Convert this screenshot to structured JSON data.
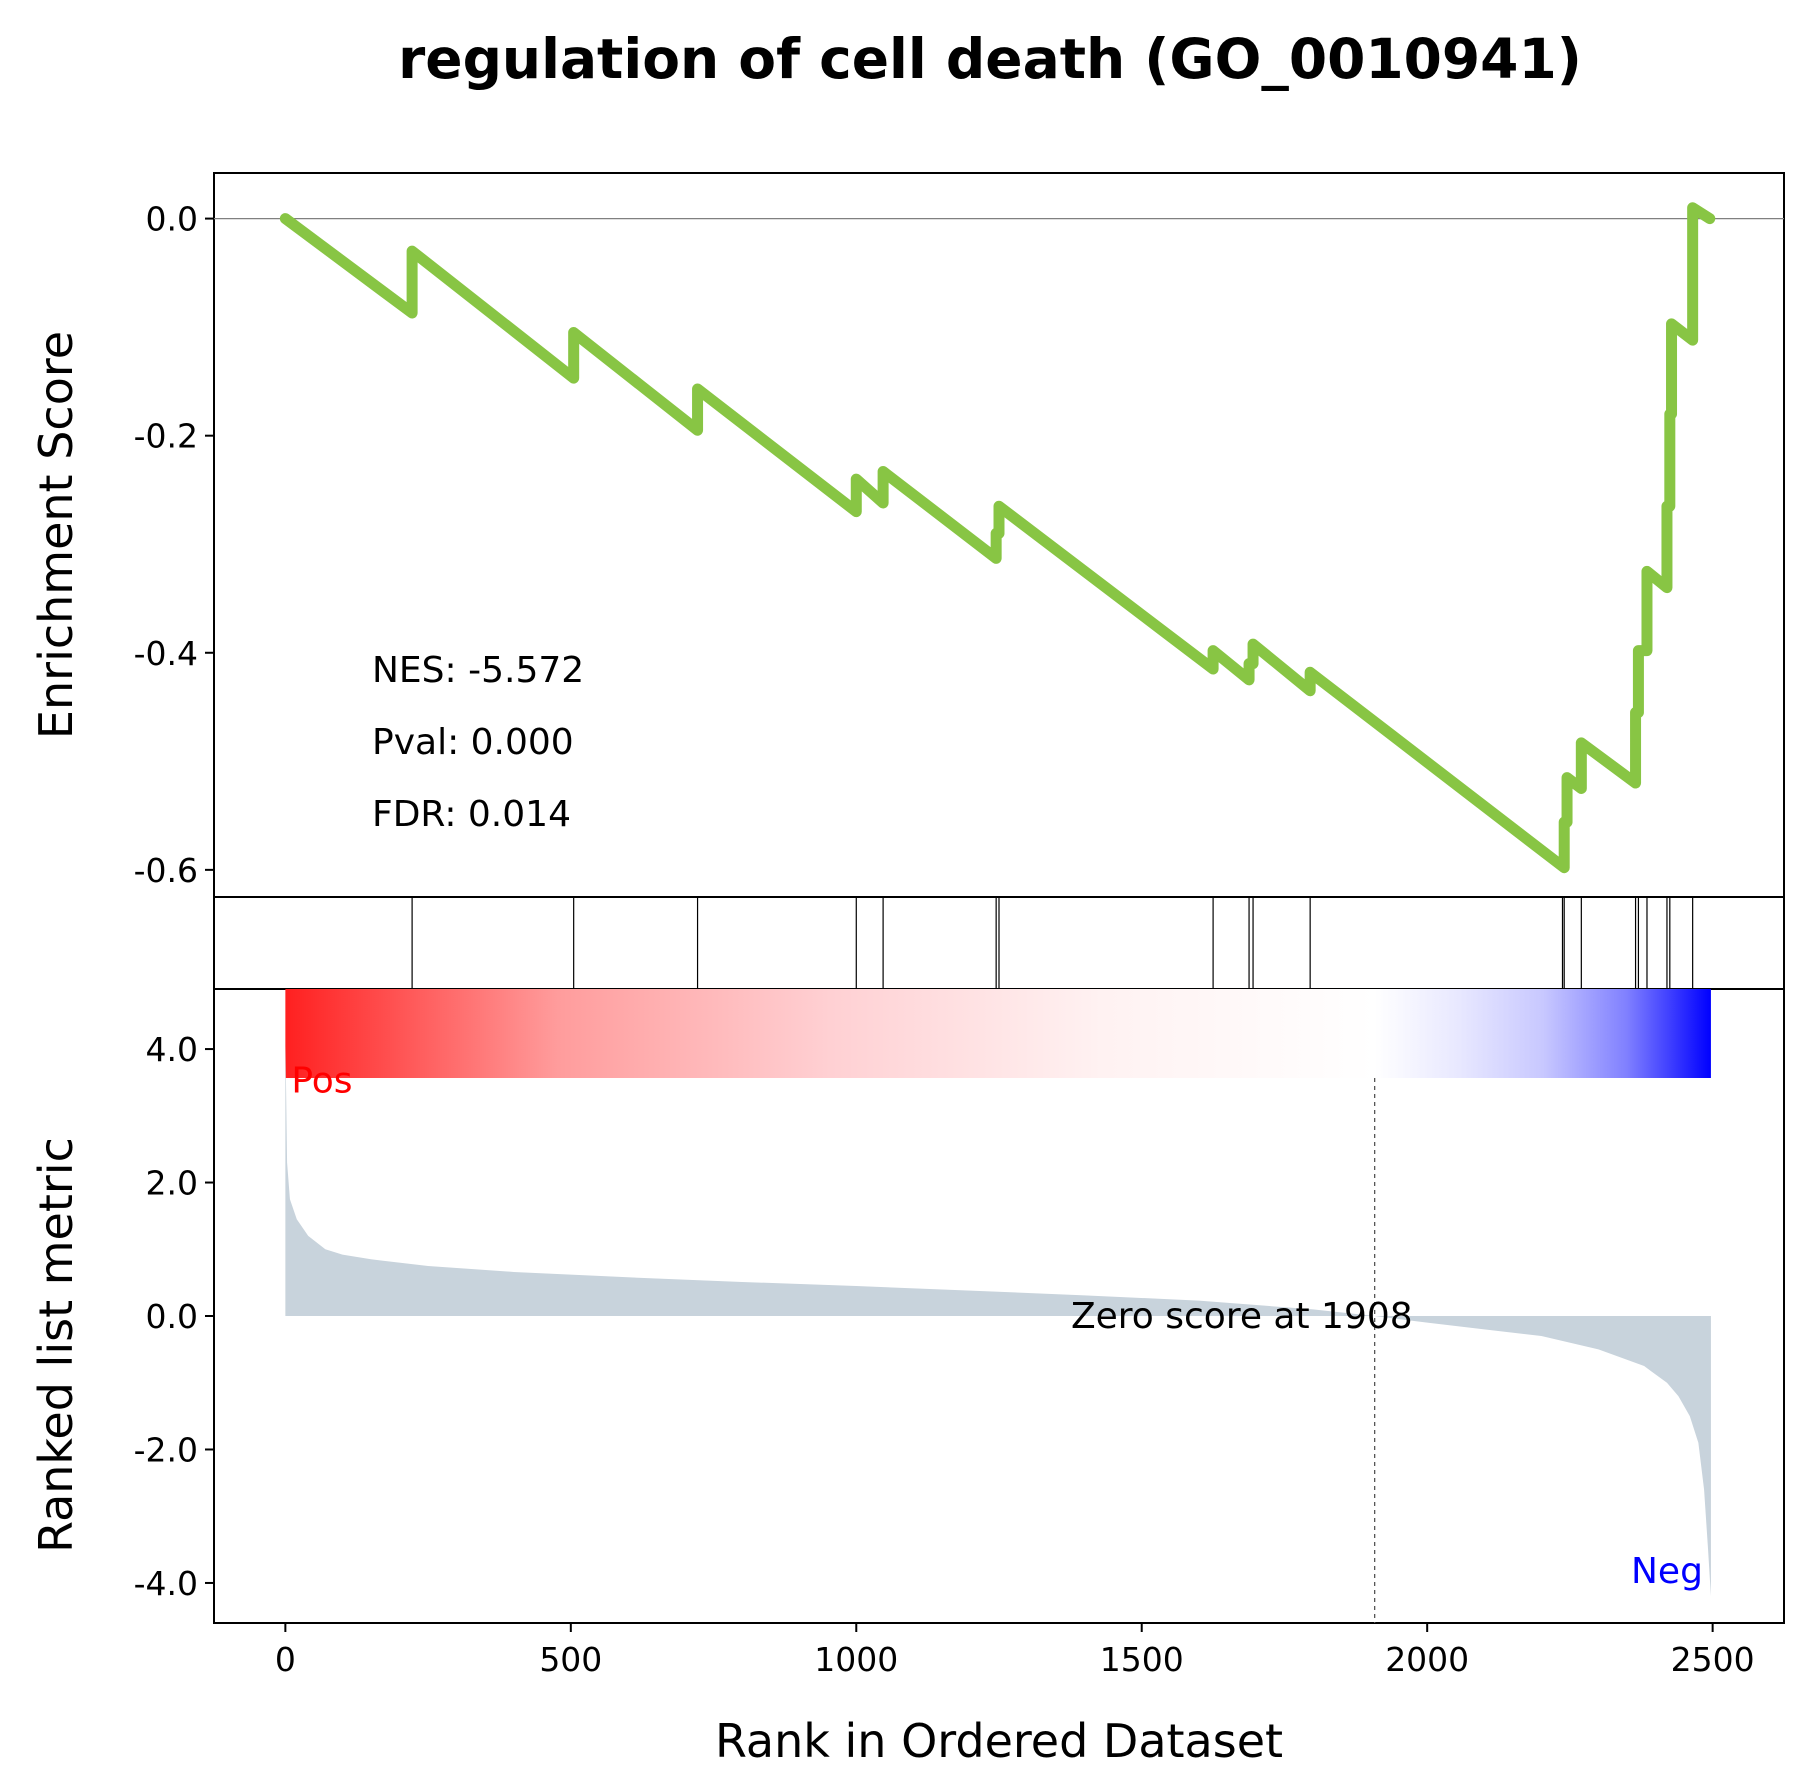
{
  "chart_data": {
    "type": "line",
    "title": "regulation of cell death (GO_0010941)",
    "xlabel": "Rank in Ordered Dataset",
    "xlim": [
      -125,
      2625
    ],
    "x_ticks": [
      0,
      500,
      1000,
      1500,
      2000,
      2500
    ],
    "x_tick_labels": [
      "0",
      "500",
      "1000",
      "1500",
      "2000",
      "2500"
    ],
    "colors": {
      "es_line": "#88c544",
      "metric_fill": "#c8d3dc",
      "pos_label": "#ff0000",
      "neg_label": "#0000ff",
      "gradient_stops": [
        "#ff2020",
        "#ff9c9c",
        "#ffd0d3",
        "#fff2f2",
        "#ffffff",
        "#e8e8ff",
        "#c8c8ff",
        "#8080ff",
        "#0000ff"
      ]
    },
    "enrichment": {
      "ylabel": "Enrichment Score",
      "ylim": [
        -0.625,
        0.042
      ],
      "y_ticks": [
        0.0,
        -0.2,
        -0.4,
        -0.6
      ],
      "y_tick_labels": [
        "0.0",
        "-0.2",
        "-0.4",
        "-0.6"
      ],
      "zero_line": true,
      "points": [
        [
          0,
          0.0
        ],
        [
          222,
          -0.087
        ],
        [
          222,
          -0.03
        ],
        [
          505,
          -0.147
        ],
        [
          505,
          -0.105
        ],
        [
          722,
          -0.195
        ],
        [
          722,
          -0.157
        ],
        [
          1000,
          -0.27
        ],
        [
          1000,
          -0.24
        ],
        [
          1047,
          -0.262
        ],
        [
          1047,
          -0.233
        ],
        [
          1245,
          -0.313
        ],
        [
          1245,
          -0.29
        ],
        [
          1250,
          -0.29
        ],
        [
          1250,
          -0.265
        ],
        [
          1625,
          -0.415
        ],
        [
          1625,
          -0.398
        ],
        [
          1688,
          -0.425
        ],
        [
          1688,
          -0.41
        ],
        [
          1695,
          -0.41
        ],
        [
          1695,
          -0.392
        ],
        [
          1795,
          -0.435
        ],
        [
          1795,
          -0.418
        ],
        [
          2240,
          -0.598
        ],
        [
          2240,
          -0.556
        ],
        [
          2245,
          -0.556
        ],
        [
          2245,
          -0.515
        ],
        [
          2270,
          -0.525
        ],
        [
          2270,
          -0.483
        ],
        [
          2365,
          -0.52
        ],
        [
          2365,
          -0.455
        ],
        [
          2370,
          -0.455
        ],
        [
          2370,
          -0.398
        ],
        [
          2385,
          -0.398
        ],
        [
          2385,
          -0.325
        ],
        [
          2420,
          -0.34
        ],
        [
          2420,
          -0.265
        ],
        [
          2425,
          -0.265
        ],
        [
          2425,
          -0.18
        ],
        [
          2428,
          -0.18
        ],
        [
          2428,
          -0.097
        ],
        [
          2465,
          -0.112
        ],
        [
          2465,
          0.01
        ],
        [
          2495,
          0.0
        ]
      ],
      "annotations": {
        "nes": "NES: -5.572",
        "pval": "Pval: 0.000",
        "fdr": "FDR: 0.014"
      }
    },
    "hits": [
      222,
      505,
      722,
      1000,
      1047,
      1245,
      1250,
      1625,
      1688,
      1695,
      1795,
      2237,
      2240,
      2270,
      2365,
      2370,
      2385,
      2420,
      2425,
      2465
    ],
    "ranked_metric": {
      "ylabel": "Ranked list metric",
      "ylim": [
        -4.6,
        4.9
      ],
      "y_ticks": [
        4.0,
        2.0,
        0.0,
        -2.0,
        -4.0
      ],
      "y_tick_labels": [
        "4.0",
        "2.0",
        "0.0",
        "-2.0",
        "-4.0"
      ],
      "points": [
        [
          0,
          4.2
        ],
        [
          3,
          2.3
        ],
        [
          8,
          1.75
        ],
        [
          20,
          1.45
        ],
        [
          40,
          1.2
        ],
        [
          70,
          1.0
        ],
        [
          100,
          0.92
        ],
        [
          150,
          0.85
        ],
        [
          250,
          0.75
        ],
        [
          400,
          0.66
        ],
        [
          600,
          0.58
        ],
        [
          800,
          0.51
        ],
        [
          1000,
          0.45
        ],
        [
          1200,
          0.38
        ],
        [
          1400,
          0.31
        ],
        [
          1600,
          0.23
        ],
        [
          1800,
          0.1
        ],
        [
          1908,
          0.0
        ],
        [
          2000,
          -0.1
        ],
        [
          2100,
          -0.2
        ],
        [
          2200,
          -0.3
        ],
        [
          2300,
          -0.5
        ],
        [
          2380,
          -0.75
        ],
        [
          2420,
          -1.0
        ],
        [
          2440,
          -1.2
        ],
        [
          2460,
          -1.5
        ],
        [
          2475,
          -1.9
        ],
        [
          2485,
          -2.6
        ],
        [
          2492,
          -3.5
        ],
        [
          2497,
          -4.2
        ]
      ],
      "zero_score_rank": 1908,
      "zero_score_label": "Zero score at 1908",
      "pos_label": "Pos",
      "neg_label": "Neg"
    }
  }
}
